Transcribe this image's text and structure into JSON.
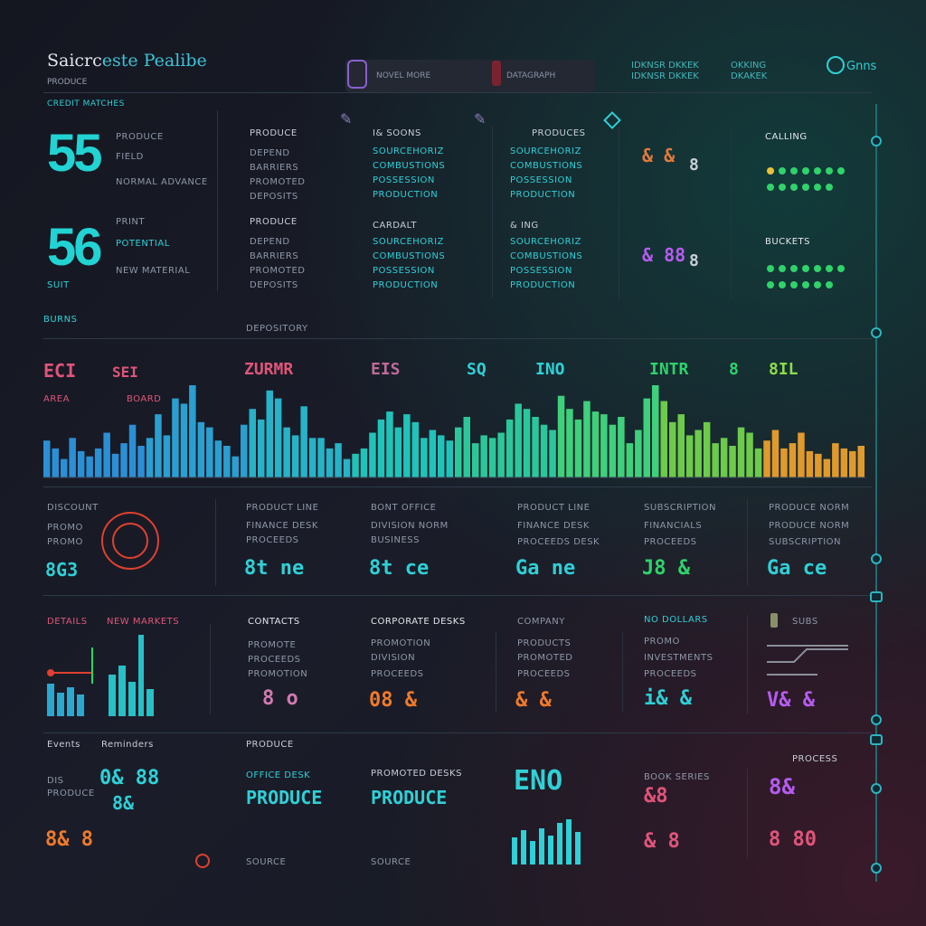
{
  "header": {
    "title_part1": "Saicrc",
    "title_part2": "este Pealibe",
    "subtitle": "PRODUCE",
    "search_left": "NOVEL MORE",
    "search_right": "DATAGRAPH",
    "right_a": "IDKNSR  DKKEK",
    "right_a2": "IDKNSR  DKKEK",
    "right_b": "OKKING",
    "right_b2": "DKAKEK",
    "user_label": "Gnns"
  },
  "stats": {
    "section_label": "CREDIT MATCHES",
    "primary_value": "55",
    "primary_label_1": "PRODUCE",
    "primary_label_2": "FIELD",
    "primary_label_3": "NORMAL ADVANCE",
    "secondary_value": "56",
    "secondary_label_1": "PRINT",
    "secondary_label_2": "POTENTIAL",
    "secondary_label_3": "NEW MATERIAL",
    "unit": "SUIT"
  },
  "lists": {
    "col1_title": "PRODUCE",
    "col1_items": [
      "DEPEND",
      "BARRIERS",
      "PROMOTED",
      "DEPOSITS"
    ],
    "col1_title2": "PRODUCE",
    "col1_items2": [
      "DEPEND",
      "BARRIERS",
      "PROMOTED",
      "DEPOSITS"
    ],
    "col2_title": "I& SOONS",
    "col2_items": [
      "SOURCEHORIZ",
      "COMBUSTIONS",
      "POSSESSION",
      "PRODUCTION"
    ],
    "col2_title2": "CARDALT",
    "col2_items2": [
      "SOURCEHORIZ",
      "COMBUSTIONS",
      "POSSESSION",
      "PRODUCTION"
    ],
    "col3_title": "PRODUCES",
    "col3_items": [
      "SOURCEHORIZ",
      "COMBUSTIONS",
      "POSSESSION",
      "PRODUCTION"
    ],
    "col3_title2": "& ING",
    "col3_items2": [
      "SOURCEHORIZ",
      "COMBUSTIONS",
      "POSSESSION",
      "PRODUCTION"
    ],
    "mini1": "& &",
    "mini2": "8",
    "mini3": "& 88",
    "mini4": "8",
    "grid_header": "CALLING",
    "grid_header2": "BUCKETS"
  },
  "chart_section": {
    "label": "BURNS",
    "sublabel": "DEPOSITORY",
    "labels": [
      "ECI",
      "SEI",
      "ZURMR",
      "EIS",
      "SQ",
      "INO",
      "INTR",
      "8",
      "8IL"
    ],
    "sub": [
      "AREA",
      "BOARD"
    ]
  },
  "chart_data": {
    "type": "bar",
    "title": "",
    "xlabel": "",
    "ylabel": "",
    "values": [
      28,
      22,
      14,
      30,
      20,
      16,
      22,
      34,
      18,
      26,
      40,
      24,
      30,
      48,
      32,
      60,
      56,
      70,
      42,
      38,
      28,
      24,
      16,
      40,
      52,
      44,
      66,
      60,
      38,
      32,
      54,
      30,
      30,
      22,
      26,
      14,
      18,
      22,
      34,
      44,
      50,
      38,
      48,
      42,
      30,
      36,
      32,
      28,
      38,
      46,
      26,
      32,
      30,
      34,
      44,
      56,
      52,
      46,
      40,
      36,
      62,
      52,
      44,
      58,
      50,
      48,
      40,
      46,
      26,
      36,
      60,
      70,
      58,
      42,
      48,
      32,
      36,
      42,
      26,
      30,
      24,
      38,
      34,
      22,
      28,
      36,
      22,
      26,
      34,
      20,
      18,
      14,
      26,
      22,
      20,
      24
    ],
    "colors": [
      "#2b8fd4",
      "#2a9fd0",
      "#27b2c7",
      "#20c3b9",
      "#2bc79b",
      "#3fd07c",
      "#6dca4a",
      "#e09a2c"
    ]
  },
  "tiles_row1": {
    "t1_head": "DISCOUNT",
    "t1_sub1": "PROMO",
    "t1_sub2": "PROMO",
    "t1_value": "8G3",
    "t2_head": "PRODUCT LINE",
    "t2_sub1": "FINANCE DESK",
    "t2_sub2": "PROCEEDS",
    "t2_value": "8t ne",
    "t3_head": "BONT OFFICE",
    "t3_sub1": "DIVISION NORM",
    "t3_sub2": "BUSINESS",
    "t3_value": "8t ce",
    "t4_head": "PRODUCT LINE",
    "t4_sub1": "FINANCE DESK",
    "t4_sub2": "PROCEEDS DESK",
    "t4_value": "Ga ne",
    "t5_head": "SUBSCRIPTION",
    "t5_sub1": "FINANCIALS",
    "t5_sub2": "PROCEEDS",
    "t5_value": "J8 &",
    "t6_head": "PRODUCE NORM",
    "t6_sub1": "PRODUCE NORM",
    "t6_sub2": "SUBSCRIPTION",
    "t6_value": "Ga ce"
  },
  "tiles_row2": {
    "t1_head": "DETAILS",
    "t1_head2": "NEW MARKETS",
    "t2_head": "CONTACTS",
    "t2_sub1": "PROMOTE",
    "t2_sub2": "PROCEEDS",
    "t2_sub3": "PROMOTION",
    "t2_value": "8 o",
    "t3_head": "CORPORATE DESKS",
    "t3_sub1": "PROMOTION",
    "t3_sub2": "DIVISION",
    "t3_sub3": "PROCEEDS",
    "t3_value": "08 &",
    "t4_head": "COMPANY",
    "t4_sub1": "PRODUCTS",
    "t4_sub2": "PROMOTED",
    "t4_sub3": "PROCEEDS",
    "t4_value": "& &",
    "t5_head": "NO DOLLARS",
    "t5_sub1": "PROMO",
    "t5_sub2": "INVESTMENTS",
    "t5_sub3": "PROCEEDS",
    "t5_value": "i& &",
    "t6_head": "SUBS",
    "t6_value": "V& &"
  },
  "bottom": {
    "c1_head": "Events",
    "c1_head2": "Reminders",
    "c1_sub1": "DIS",
    "c1_sub2": "PRODUCE",
    "c1_value": "8& 8",
    "c1_value2": "8&",
    "c1_big": "0& 88",
    "c2_head": "PRODUCE",
    "c2_sub1": "OFFICE DESK",
    "c2_sub2": "PRODUCE",
    "c2_sub3": "SOURCE",
    "c3_head": "PROMOTED DESKS",
    "c3_sub1": "PRODUCE",
    "c3_sub2": "SOURCE",
    "c4_value": "ENO",
    "c5_head": "BOOK SERIES",
    "c5_value": "&8",
    "c5_value2": "& 8",
    "c6_head": "PROCESS",
    "c6_value": "8&",
    "c6_value2": "8 80"
  },
  "colors": {
    "accent": "#22d3d3",
    "orange": "#ef7a2c",
    "pink": "#e0557a",
    "green": "#2fd36a",
    "purple": "#b55cf0"
  }
}
